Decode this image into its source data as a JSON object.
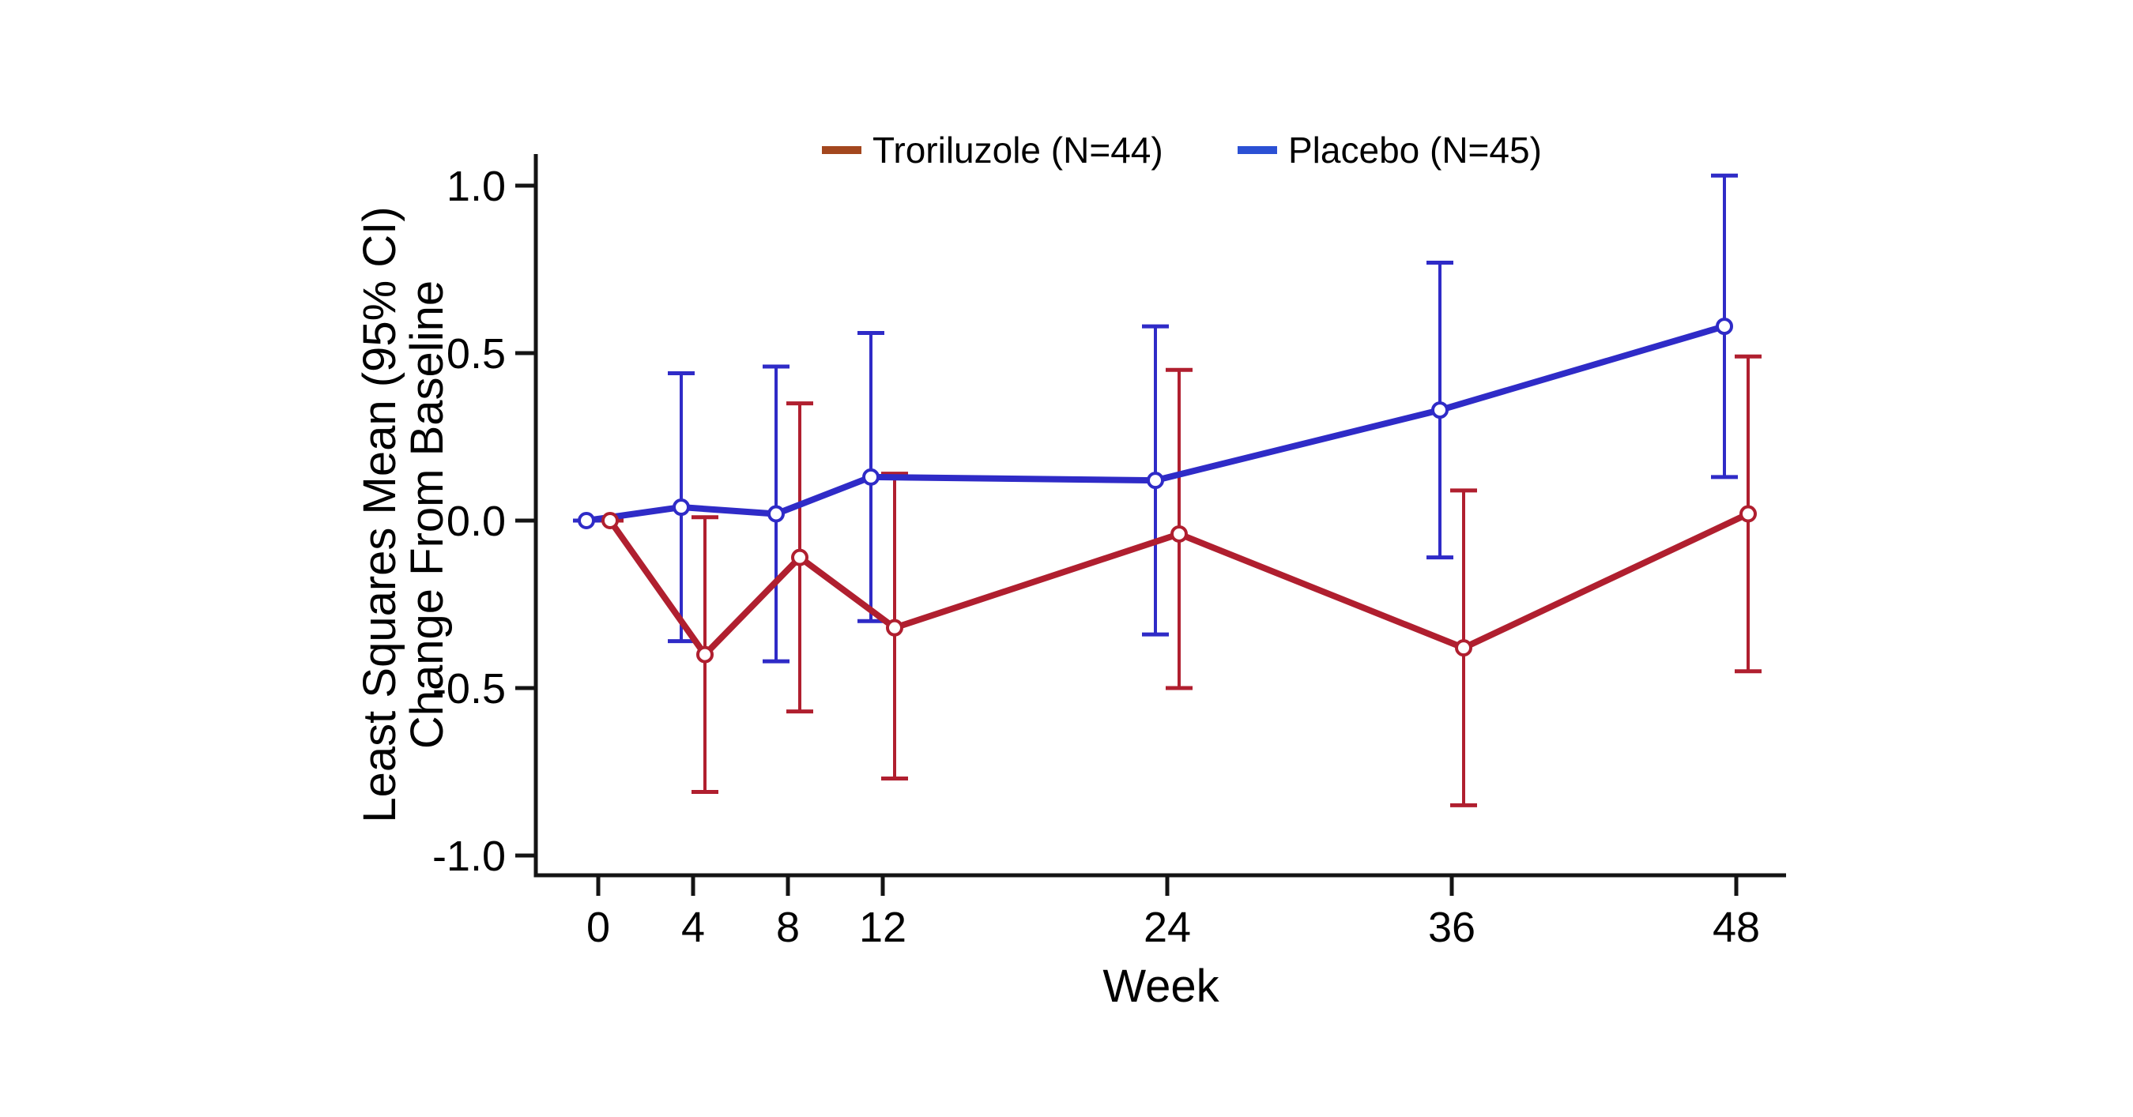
{
  "figure": {
    "background": "#ffffff",
    "axis_color": "#141414",
    "text_color": "#000000"
  },
  "legend": {
    "position": "top-center",
    "items": [
      {
        "label": "Troriluzole (N=44)",
        "swatch_color": "#A3471E"
      },
      {
        "label": "Placebo (N=45)",
        "swatch_color": "#2B50D4"
      }
    ]
  },
  "chart_data": {
    "type": "line",
    "title": "",
    "xlabel": "Week",
    "ylabel_lines": [
      "Least Squares Mean (95% CI)",
      "Change From Baseline"
    ],
    "x": [
      0,
      4,
      8,
      12,
      24,
      36,
      48
    ],
    "xtick_labels": [
      "0",
      "4",
      "8",
      "12",
      "24",
      "36",
      "48"
    ],
    "ytick_values": [
      1.0,
      0.5,
      0.0,
      -0.5,
      -1.0
    ],
    "ytick_labels": [
      "1.0",
      "0.5",
      "0.0",
      "-0.5",
      "-1.0"
    ],
    "ylim": [
      -1.0,
      1.0
    ],
    "grid": false,
    "marker": "open-circle",
    "error_bars": "95% CI",
    "series": [
      {
        "name": "Troriluzole (N=44)",
        "n": 44,
        "line_color": "#B01F2F",
        "offset_weeks": 0.5,
        "means": [
          0.0,
          -0.4,
          -0.11,
          -0.32,
          -0.04,
          -0.38,
          0.02
        ],
        "ci_low": [
          0.0,
          -0.81,
          -0.57,
          -0.77,
          -0.5,
          -0.85,
          -0.45
        ],
        "ci_high": [
          0.0,
          0.01,
          0.35,
          0.14,
          0.45,
          0.09,
          0.49
        ]
      },
      {
        "name": "Placebo (N=45)",
        "n": 45,
        "line_color": "#2F2BC7",
        "offset_weeks": -0.5,
        "means": [
          0.0,
          0.04,
          0.02,
          0.13,
          0.12,
          0.33,
          0.58
        ],
        "ci_low": [
          0.0,
          -0.36,
          -0.42,
          -0.3,
          -0.34,
          -0.11,
          0.13
        ],
        "ci_high": [
          0.0,
          0.44,
          0.46,
          0.56,
          0.58,
          0.77,
          1.03
        ]
      }
    ]
  }
}
